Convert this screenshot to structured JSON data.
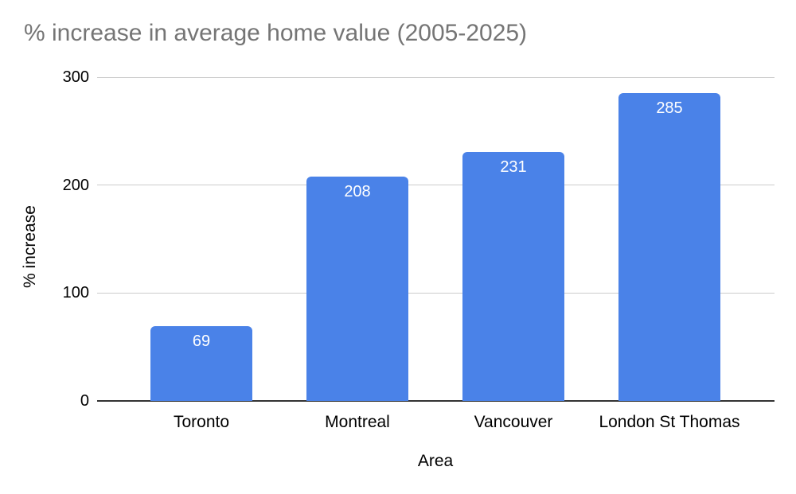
{
  "chart_data": {
    "type": "bar",
    "title": "% increase in average home value (2005-2025)",
    "categories": [
      "Toronto",
      "Montreal",
      "Vancouver",
      "London St Thomas"
    ],
    "values": [
      69,
      208,
      231,
      285
    ],
    "bar_labels": [
      "69",
      "208",
      "231",
      "285"
    ],
    "xlabel": "Area",
    "ylabel": "% increase",
    "ylim": [
      0,
      300
    ],
    "yticks": [
      0,
      100,
      200,
      300
    ],
    "grid": "horizontal-on",
    "legend": "none",
    "colors": {
      "bar": "#4a82e8",
      "bar_label": "#ffffff",
      "title": "#757575",
      "axis_text": "#000000",
      "gridline": "#cccccc",
      "baseline": "#333333",
      "background": "#ffffff"
    }
  }
}
